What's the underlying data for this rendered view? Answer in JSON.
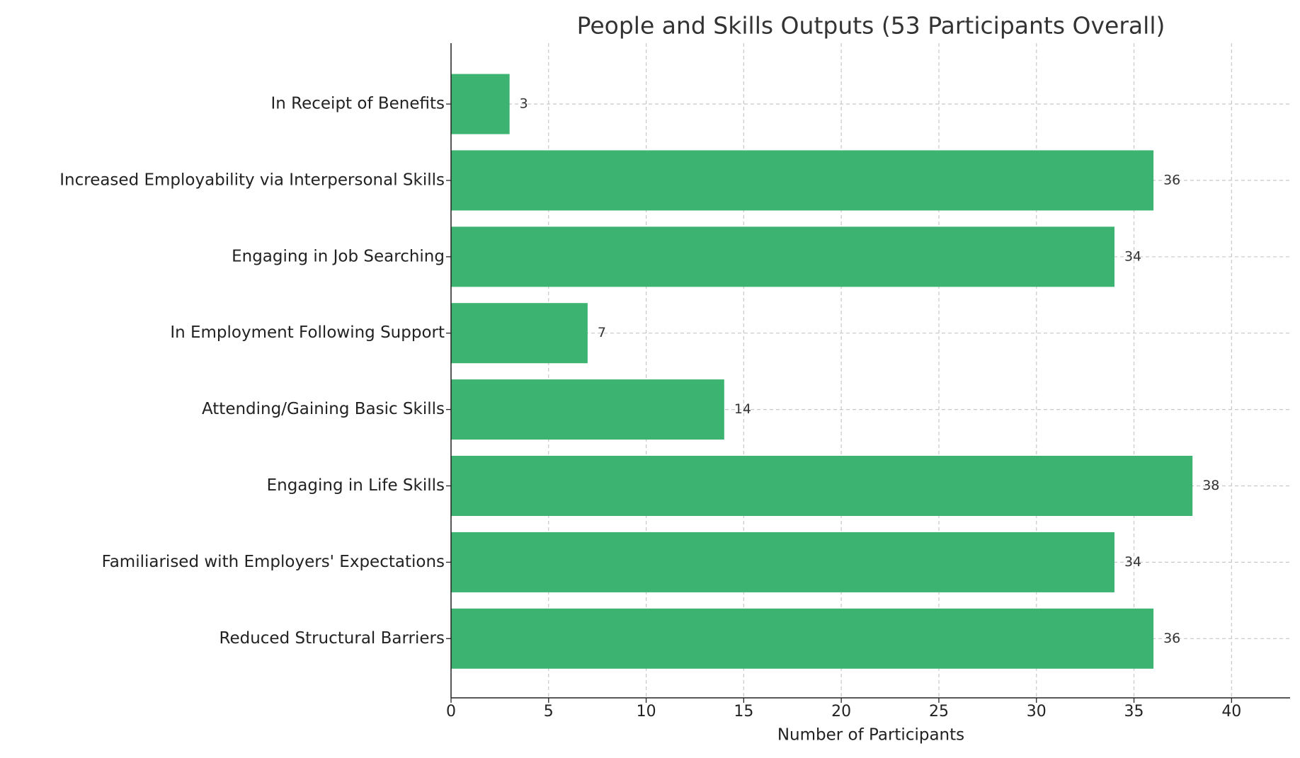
{
  "chart_data": {
    "type": "barh",
    "title": "People and Skills Outputs (53 Participants Overall)",
    "x_label": "Number of Participants",
    "categories": [
      "In Receipt of Benefits",
      "Increased Employability via Interpersonal Skills",
      "Engaging in Job Searching",
      "In Employment Following Support",
      "Attending/Gaining Basic Skills",
      "Engaging in Life Skills",
      "Familiarised with Employers' Expectations",
      "Reduced Structural Barriers"
    ],
    "values": [
      3,
      36,
      34,
      7,
      14,
      38,
      34,
      36
    ],
    "color": "#3cb371",
    "xlim": [
      0,
      43
    ],
    "xticks": [
      0,
      5,
      10,
      15,
      20,
      25,
      30,
      35,
      40
    ],
    "grid": true
  }
}
